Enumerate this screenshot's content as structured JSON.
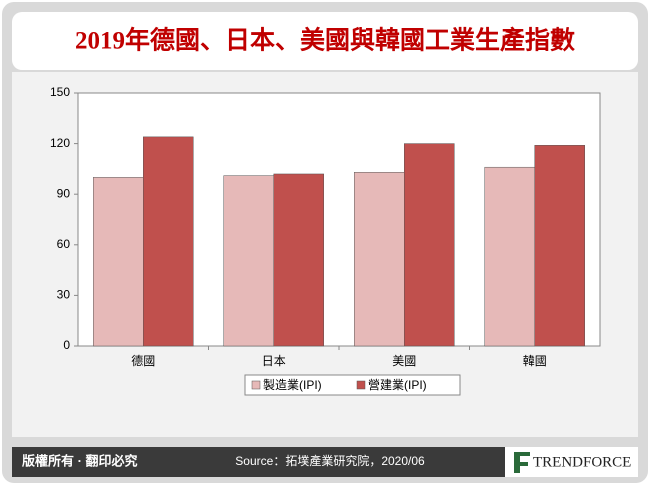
{
  "chart_data": {
    "type": "bar",
    "title": "2019年德國、日本、美國與韓國工業生產指數",
    "categories": [
      "德國",
      "日本",
      "美國",
      "韓國"
    ],
    "series": [
      {
        "name": "製造業(IPI)",
        "color": "#e6b9b8",
        "values": [
          100,
          101,
          103,
          106
        ]
      },
      {
        "name": "營建業(IPI)",
        "color": "#c0504d",
        "values": [
          124,
          102,
          120,
          119
        ]
      }
    ],
    "ylim": [
      0,
      150
    ],
    "yticks": [
      0,
      30,
      60,
      90,
      120,
      150
    ],
    "grid": false,
    "legend": "bottom"
  },
  "footer": {
    "rights": "版權所有 · 翻印必究",
    "source": "Source：拓墣產業研究院，2020/06",
    "brand": "TRENDFORCE"
  }
}
